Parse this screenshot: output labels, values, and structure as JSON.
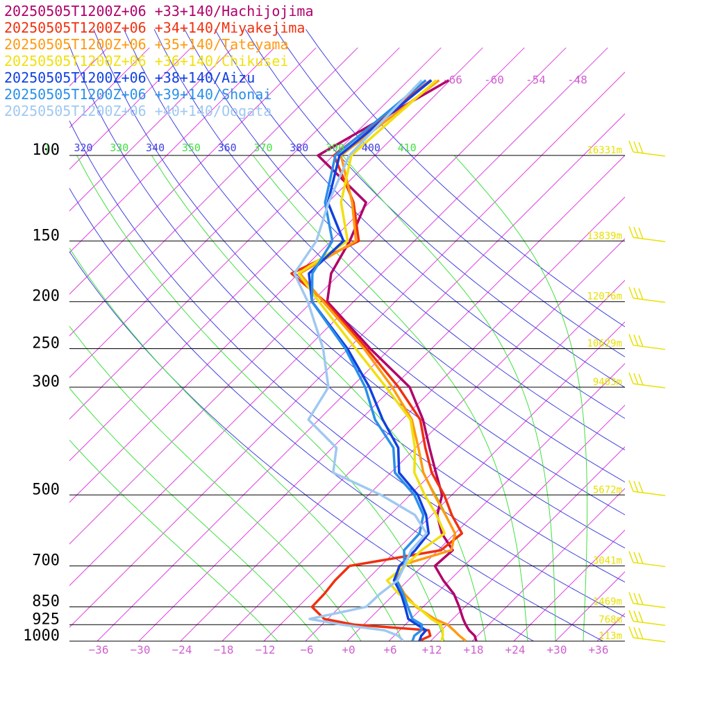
{
  "chart_data": {
    "type": "skew-t log-p sounding",
    "title": "",
    "valid_time": "20250505T1200Z+06",
    "pressure_levels": [
      100,
      150,
      200,
      250,
      300,
      500,
      700,
      850,
      925,
      1000
    ],
    "pressure_labels": [
      "100",
      "150",
      "200",
      "250",
      "300",
      "500",
      "700",
      "850",
      "925",
      "1000"
    ],
    "height_labels": [
      {
        "p": 100,
        "label": "16331m"
      },
      {
        "p": 150,
        "label": "13839m"
      },
      {
        "p": 200,
        "label": "12076m"
      },
      {
        "p": 250,
        "label": "10629m"
      },
      {
        "p": 300,
        "label": "9403m"
      },
      {
        "p": 500,
        "label": "5672m"
      },
      {
        "p": 700,
        "label": "3041m"
      },
      {
        "p": 850,
        "label": "1469m"
      },
      {
        "p": 925,
        "label": "768m"
      },
      {
        "p": 1000,
        "label": "113m"
      }
    ],
    "temperature_ticks": [
      -36,
      -30,
      -24,
      -18,
      -12,
      -6,
      0,
      6,
      12,
      18,
      24,
      30,
      36
    ],
    "temperature_tick_labels": [
      "−36",
      "−30",
      "−24",
      "−18",
      "−12",
      "−6",
      "+0",
      "+6",
      "+12",
      "+18",
      "+24",
      "+30",
      "+36"
    ],
    "isotherm_labels": [
      {
        "t": -66,
        "label": "-66"
      },
      {
        "t": -60,
        "label": "-60"
      },
      {
        "t": -54,
        "label": "-54"
      },
      {
        "t": -48,
        "label": "-48"
      }
    ],
    "theta_lines": [
      320,
      330,
      340,
      350,
      360,
      370,
      380,
      390,
      400,
      410
    ],
    "theta_labels": [
      {
        "theta": 310,
        "label": ")"
      },
      {
        "theta": 320,
        "label": "320"
      },
      {
        "theta": 330,
        "label": "330"
      },
      {
        "theta": 340,
        "label": "340"
      },
      {
        "theta": 350,
        "label": "350"
      },
      {
        "theta": 360,
        "label": "360"
      },
      {
        "theta": 370,
        "label": "370"
      },
      {
        "theta": 380,
        "label": "380"
      },
      {
        "theta": 390,
        "label": "390"
      },
      {
        "theta": 400,
        "label": "400"
      },
      {
        "theta": 410,
        "label": "410"
      }
    ],
    "axes": {
      "p_range": [
        100,
        1000
      ],
      "t_range_at_1000hPa": [
        -40,
        40
      ],
      "p_scale": "log",
      "skew": "45deg"
    },
    "colors": {
      "isotherm": "#e040e0",
      "dry_adiabat": "#4040e0",
      "moist_adiabat": "#40e040",
      "pressure_line": "#000000",
      "tick_label": "#d060d0",
      "height_label": "#e8e000",
      "wind_barb": "#e8e000"
    },
    "series": [
      {
        "name": "20250505T1200Z+06 +33+140/Hachijojima",
        "color": "#b0006a",
        "p": [
          1000,
          975,
          950,
          925,
          900,
          850,
          800,
          750,
          700,
          650,
          600,
          550,
          500,
          450,
          400,
          350,
          300,
          250,
          200,
          175,
          150,
          125,
          100,
          70
        ],
        "t": [
          18.6,
          17.6,
          16.0,
          14.7,
          13.5,
          11.2,
          8.6,
          5.1,
          1.8,
          2.1,
          -1.9,
          -5.2,
          -7.4,
          -11.5,
          -16.0,
          -21.0,
          -27.6,
          -38.8,
          -51.8,
          -55.3,
          -57.3,
          -60.5,
          -74.2,
          -66.2
        ]
      },
      {
        "name": "20250505T1200Z+06 +34+140/Miyakejima",
        "color": "#f03010",
        "p": [
          1000,
          975,
          950,
          925,
          900,
          850,
          800,
          750,
          700,
          650,
          600,
          550,
          500,
          450,
          400,
          350,
          300,
          250,
          200,
          175,
          150,
          125,
          100,
          70
        ],
        "t": [
          10.3,
          11.2,
          10.2,
          -1.3,
          -6.5,
          -10.0,
          -10.1,
          -10.5,
          -10.5,
          0.4,
          1.0,
          -3.1,
          -7.1,
          -12.1,
          -16.6,
          -21.4,
          -29.2,
          -39.3,
          -52.1,
          -61.0,
          -56.0,
          -62.3,
          -71.9,
          -68.8
        ]
      },
      {
        "name": "20250505T1200Z+06 +35+140/Tateyama",
        "color": "#ff9a10",
        "p": [
          1000,
          975,
          950,
          925,
          900,
          850,
          800,
          750,
          700,
          650,
          600,
          550,
          500,
          450,
          400,
          350,
          300,
          250,
          200,
          175,
          150,
          125,
          100,
          70
        ],
        "t": [
          17.1,
          15.4,
          13.8,
          12.1,
          9.4,
          5.0,
          1.5,
          -1.6,
          -3.4,
          1.9,
          0.0,
          -4.0,
          -8.5,
          -13.3,
          -17.6,
          -22.6,
          -30.1,
          -39.7,
          -52.4,
          -59.8,
          -56.4,
          -62.5,
          -70.9,
          -67.6
        ]
      },
      {
        "name": "20250505T1200Z+06 +36+140/Chikusei",
        "color": "#f0e010",
        "p": [
          1000,
          975,
          950,
          925,
          900,
          850,
          800,
          750,
          700,
          650,
          600,
          550,
          500,
          450,
          400,
          350,
          300,
          250,
          200,
          175,
          150,
          125,
          100,
          70
        ],
        "t": [
          13.6,
          13.0,
          12.2,
          11.1,
          8.9,
          5.2,
          0.7,
          -3.0,
          -2.5,
          -2.4,
          -1.5,
          -5.3,
          -9.9,
          -14.6,
          -18.1,
          -22.8,
          -31.0,
          -40.9,
          -53.0,
          -60.0,
          -57.6,
          -64.1,
          -69.4,
          -68.0
        ]
      },
      {
        "name": "20250505T1200Z+06 +38+140/Aizu",
        "color": "#1040e0",
        "p": [
          1000,
          975,
          950,
          925,
          900,
          850,
          800,
          750,
          700,
          650,
          600,
          550,
          500,
          450,
          400,
          350,
          300,
          250,
          200,
          175,
          150,
          125,
          100,
          70
        ],
        "t": [
          10.4,
          9.9,
          9.8,
          7.7,
          5.6,
          3.4,
          1.0,
          -2.0,
          -3.3,
          -3.3,
          -3.8,
          -6.8,
          -10.9,
          -16.8,
          -20.5,
          -26.8,
          -33.4,
          -42.1,
          -54.0,
          -58.5,
          -58.2,
          -66.0,
          -71.1,
          -68.7
        ]
      },
      {
        "name": "20250505T1200Z+06 +39+140/Shonai",
        "color": "#2a90e8",
        "p": [
          1000,
          975,
          950,
          925,
          900,
          850,
          800,
          750,
          700,
          650,
          600,
          550,
          500,
          450,
          400,
          350,
          300,
          250,
          200,
          175,
          150,
          125,
          100,
          70
        ],
        "t": [
          9.4,
          8.9,
          9.1,
          8.4,
          6.2,
          3.8,
          1.3,
          -1.6,
          -2.6,
          -4.9,
          -5.1,
          -7.2,
          -11.4,
          -17.4,
          -21.2,
          -27.9,
          -34.0,
          -42.4,
          -54.0,
          -58.0,
          -59.8,
          -66.4,
          -71.7,
          -69.5
        ]
      },
      {
        "name": "20250505T1200Z+06 +40+140/Oogata",
        "color": "#a0c8f0",
        "p": [
          1000,
          975,
          950,
          925,
          900,
          850,
          800,
          750,
          700,
          650,
          600,
          550,
          500,
          450,
          400,
          350,
          300,
          250,
          200,
          175,
          150,
          125,
          100,
          70
        ],
        "t": [
          8.1,
          6.6,
          3.8,
          -3.1,
          -8.6,
          -2.2,
          -2.1,
          -1.5,
          -2.6,
          -3.9,
          -4.1,
          -8.4,
          -16.2,
          -26.3,
          -29.4,
          -37.5,
          -39.3,
          -45.6,
          -54.6,
          -60.6,
          -62.1,
          -65.9,
          -69.7,
          -70.1
        ]
      }
    ],
    "wind_barbs_present": true,
    "grid": true,
    "legend_position": "top-left"
  }
}
